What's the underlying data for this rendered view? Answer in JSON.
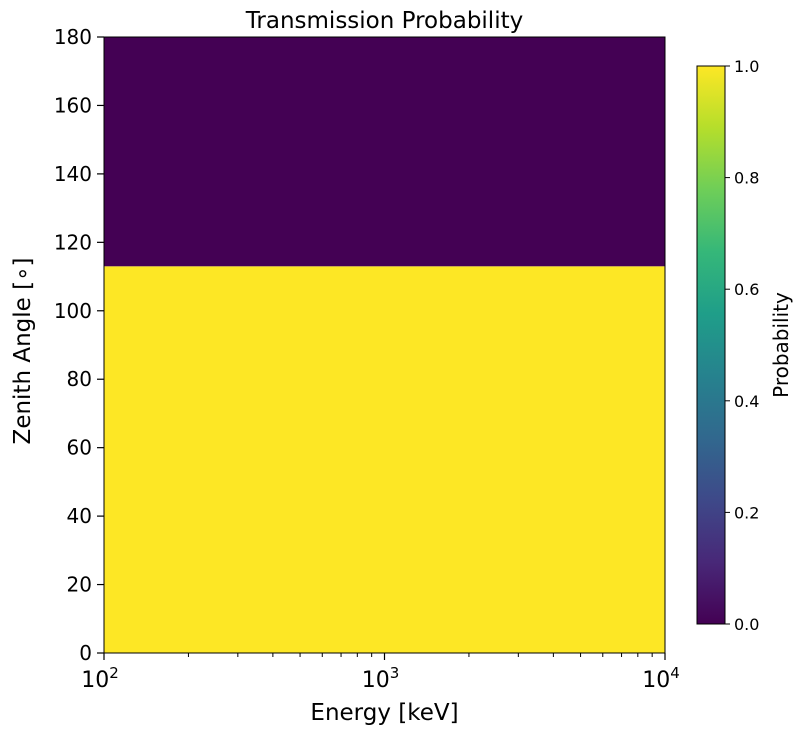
{
  "chart_data": {
    "type": "heatmap",
    "title": "Transmission Probability",
    "xlabel": "Energy [keV]",
    "ylabel": "Zenith Angle [∘]",
    "xscale": "log",
    "xlim": [
      100,
      10000
    ],
    "ylim": [
      0,
      180
    ],
    "x_ticks": [
      {
        "value": 100,
        "base": "10",
        "exp": "2"
      },
      {
        "value": 1000,
        "base": "10",
        "exp": "3"
      },
      {
        "value": 10000,
        "base": "10",
        "exp": "4"
      }
    ],
    "y_ticks": [
      0,
      20,
      40,
      60,
      80,
      100,
      120,
      140,
      160,
      180
    ],
    "cells": [
      {
        "x_range": [
          100,
          10000
        ],
        "y_range": [
          0,
          113
        ],
        "value": 1.0
      },
      {
        "x_range": [
          100,
          10000
        ],
        "y_range": [
          113,
          180
        ],
        "value": 0.0
      }
    ],
    "colorbar": {
      "label": "Probability",
      "colormap": "viridis",
      "range": [
        0.0,
        1.0
      ],
      "ticks": [
        "0.0",
        "0.2",
        "0.4",
        "0.6",
        "0.8",
        "1.0"
      ],
      "colors": [
        "#440154",
        "#482878",
        "#3e4989",
        "#31688e",
        "#26828e",
        "#1f9e89",
        "#35b779",
        "#6ece58",
        "#b5de2b",
        "#fde725"
      ]
    },
    "grid": false
  }
}
